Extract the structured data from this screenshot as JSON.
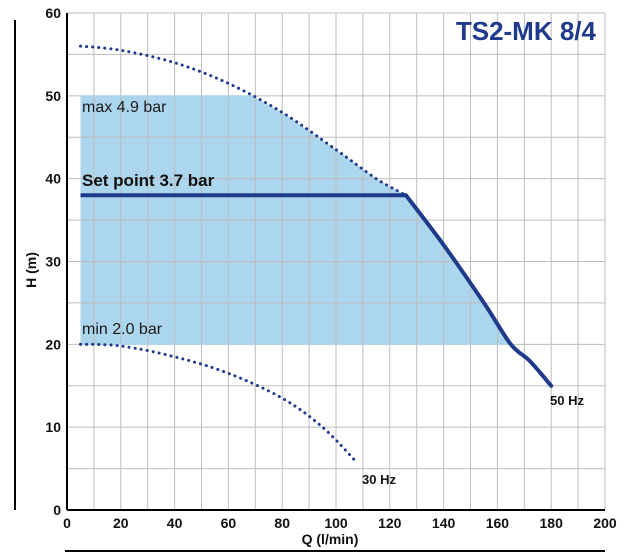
{
  "chart_data": {
    "type": "line",
    "title": "TS2-MK 8/4",
    "xlabel": "Q (l/min)",
    "ylabel": "H (m)",
    "xlim": [
      0,
      200
    ],
    "ylim": [
      0,
      60
    ],
    "x_ticks": [
      0,
      20,
      40,
      60,
      80,
      100,
      120,
      140,
      160,
      180,
      200
    ],
    "y_ticks": [
      0,
      10,
      20,
      30,
      40,
      50,
      60
    ],
    "grid": true,
    "colors": {
      "title": "#1f3a8a",
      "curve": "#1f3a8a",
      "band_fill": "#a8d4ec",
      "grid": "#bdbdbd"
    },
    "operating_band": {
      "x_start": 5,
      "max": {
        "label": "max 4.9 bar",
        "y": 50
      },
      "min": {
        "label": "min 2.0 bar",
        "y": 20
      }
    },
    "set_point": {
      "label": "Set point 3.7 bar",
      "y": 38,
      "x_start": 5,
      "x_end": 126
    },
    "series": [
      {
        "name": "50 Hz",
        "style": "mixed",
        "points": [
          [
            5,
            56
          ],
          [
            20,
            55.5
          ],
          [
            40,
            54
          ],
          [
            60,
            51.5
          ],
          [
            80,
            48
          ],
          [
            100,
            43.5
          ],
          [
            115,
            40
          ],
          [
            126,
            38
          ],
          [
            140,
            32
          ],
          [
            155,
            25
          ],
          [
            165,
            20
          ],
          [
            172,
            18
          ],
          [
            180,
            15
          ]
        ]
      },
      {
        "name": "30 Hz",
        "style": "dotted",
        "points": [
          [
            5,
            20
          ],
          [
            20,
            19.8
          ],
          [
            40,
            18.5
          ],
          [
            60,
            16.5
          ],
          [
            80,
            13.5
          ],
          [
            95,
            10
          ],
          [
            107,
            6
          ]
        ]
      }
    ]
  }
}
